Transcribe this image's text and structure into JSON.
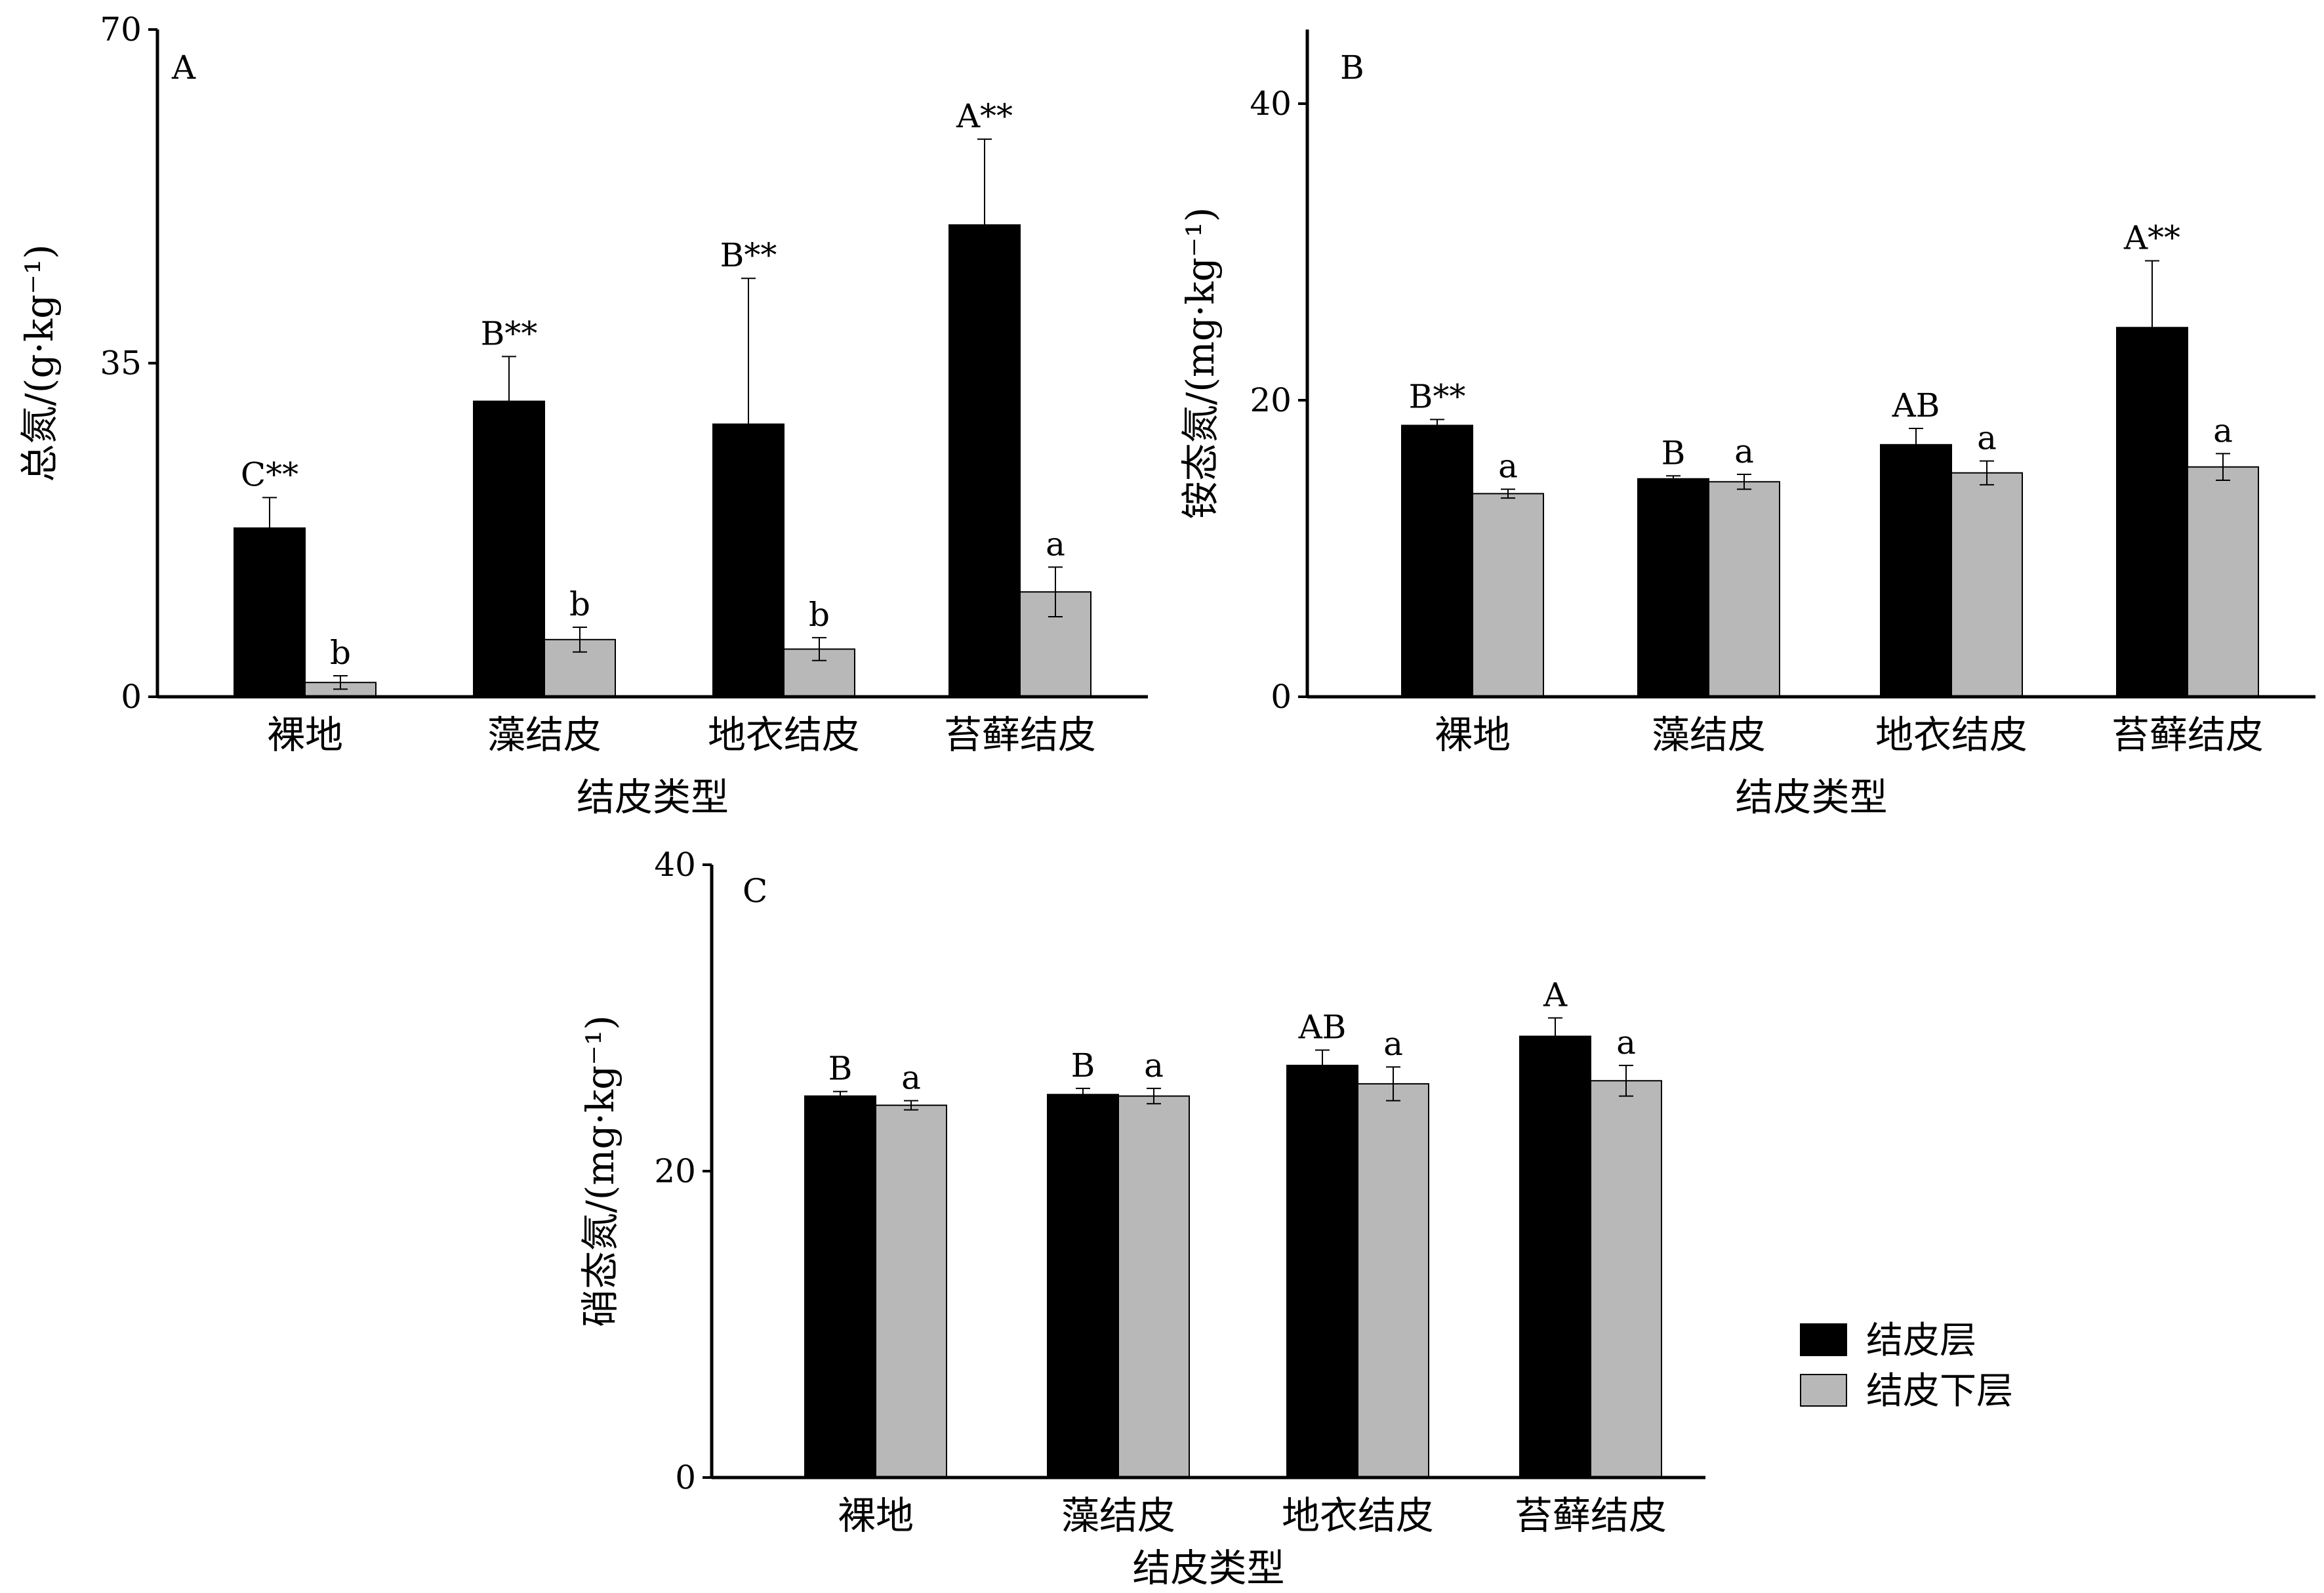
{
  "chart_data": [
    {
      "type": "bar",
      "panel": "A",
      "categories": [
        "裸地",
        "藻结皮",
        "地衣结皮",
        "苔藓结皮"
      ],
      "xlabel": "结皮类型",
      "ylabel": "总氮/(g·kg⁻¹)",
      "ylim": [
        0,
        70
      ],
      "yticks": [
        "0",
        "35",
        "70"
      ],
      "series": [
        {
          "name": "结皮层",
          "values": [
            17.7,
            31.0,
            28.6,
            49.5
          ],
          "errors": [
            3.2,
            4.7,
            15.3,
            9.0
          ],
          "labels": [
            "C**",
            "B**",
            "B**",
            "A**"
          ]
        },
        {
          "name": "结皮下层",
          "values": [
            1.5,
            6.0,
            5.0,
            11.0
          ],
          "errors": [
            0.7,
            1.3,
            1.2,
            2.6
          ],
          "labels": [
            "b",
            "b",
            "b",
            "a"
          ]
        }
      ]
    },
    {
      "type": "bar",
      "panel": "B",
      "categories": [
        "裸地",
        "藻结皮",
        "地衣结皮",
        "苔藓结皮"
      ],
      "xlabel": "结皮类型",
      "ylabel": "铵态氮/(mg·kg⁻¹)",
      "ylim": [
        0,
        45
      ],
      "yticks": [
        "0",
        "20",
        "40"
      ],
      "series": [
        {
          "name": "结皮层",
          "values": [
            18.3,
            14.7,
            17.0,
            24.9
          ],
          "errors": [
            0.4,
            0.2,
            1.1,
            4.5
          ],
          "labels": [
            "B**",
            "B",
            "AB",
            "A**"
          ]
        },
        {
          "name": "结皮下层",
          "values": [
            13.7,
            14.5,
            15.1,
            15.5
          ],
          "errors": [
            0.3,
            0.5,
            0.8,
            0.9
          ],
          "labels": [
            "a",
            "a",
            "a",
            "a"
          ]
        }
      ]
    },
    {
      "type": "bar",
      "panel": "C",
      "categories": [
        "裸地",
        "藻结皮",
        "地衣结皮",
        "苔藓结皮"
      ],
      "xlabel": "结皮类型",
      "ylabel": "硝态氮/(mg·kg⁻¹)",
      "ylim": [
        0,
        40
      ],
      "yticks": [
        "0",
        "20",
        "40"
      ],
      "series": [
        {
          "name": "结皮层",
          "values": [
            24.9,
            25.0,
            26.9,
            28.8
          ],
          "errors": [
            0.3,
            0.4,
            1.0,
            1.2
          ],
          "labels": [
            "B",
            "B",
            "AB",
            "A"
          ]
        },
        {
          "name": "结皮下层",
          "values": [
            24.3,
            24.9,
            25.7,
            25.9
          ],
          "errors": [
            0.3,
            0.5,
            1.1,
            1.0
          ],
          "labels": [
            "a",
            "a",
            "a",
            "a"
          ]
        }
      ]
    }
  ],
  "legend": {
    "items": [
      {
        "label": "结皮层",
        "color": "#000000"
      },
      {
        "label": "结皮下层",
        "color": "#b8b8b8"
      }
    ]
  },
  "colors": {
    "series_1": "#000000",
    "series_2": "#b8b8b8",
    "axis": "#000000"
  }
}
